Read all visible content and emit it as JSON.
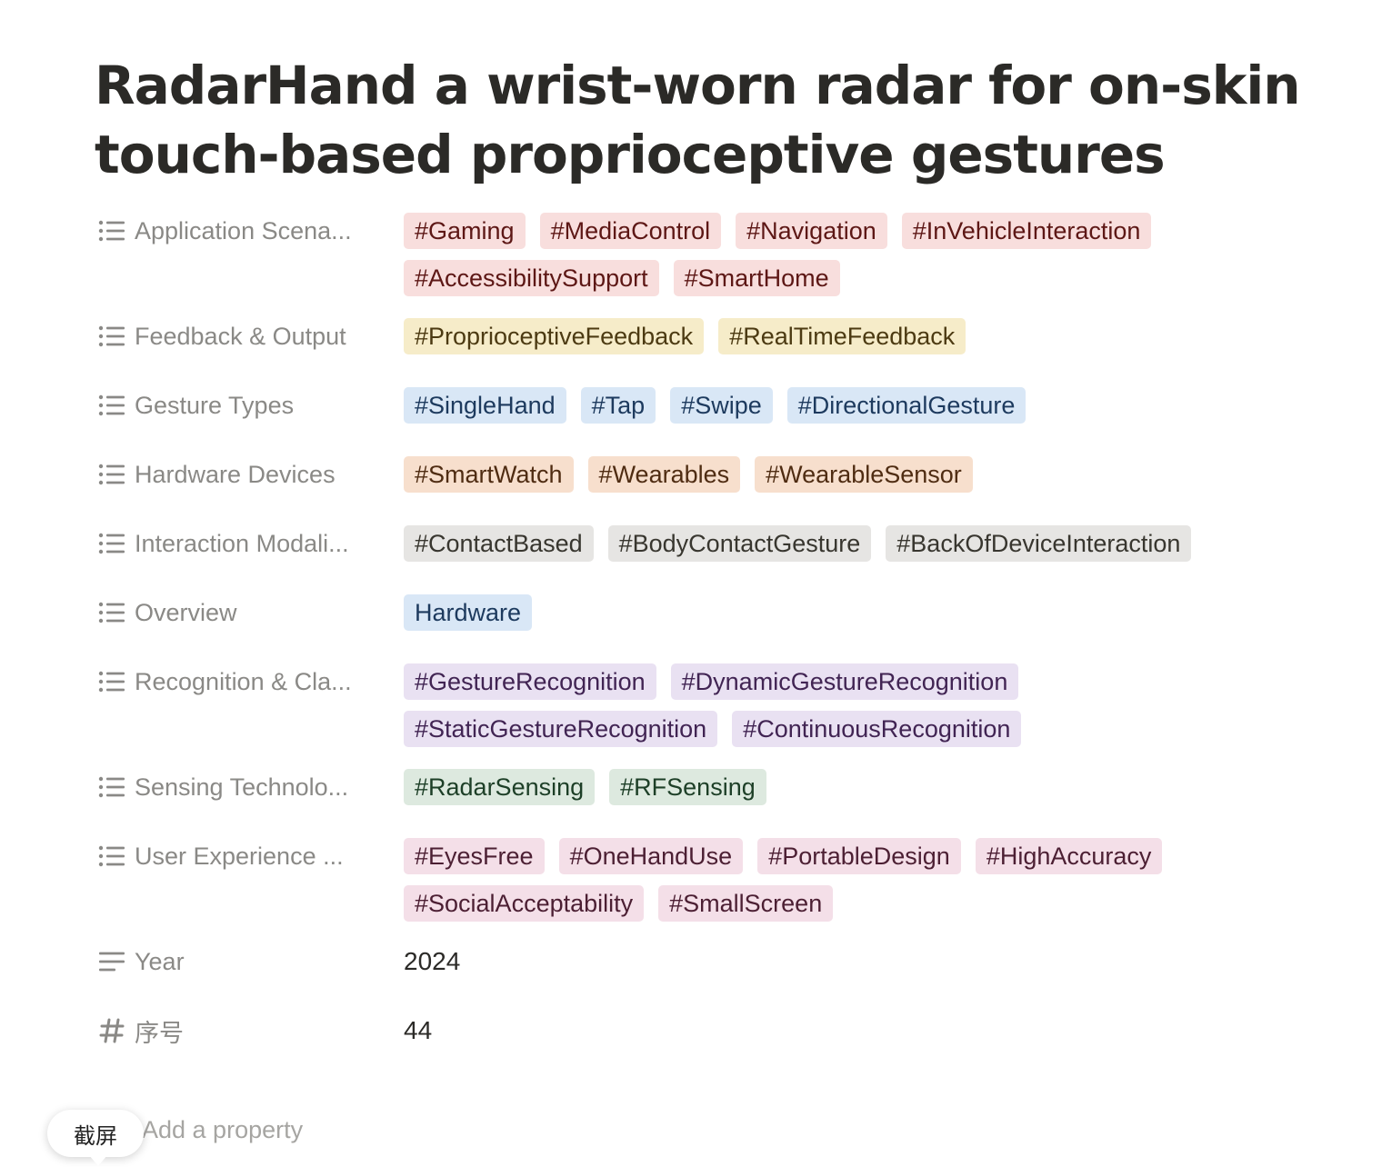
{
  "page": {
    "title": "RadarHand a wrist-worn radar for on-skin touch-based proprioceptive gestures"
  },
  "properties": [
    {
      "name": "Application Scena...",
      "icon": "multi-select-icon",
      "tags": [
        {
          "label": "#Gaming",
          "color": "red"
        },
        {
          "label": "#MediaControl",
          "color": "red"
        },
        {
          "label": "#Navigation",
          "color": "red"
        },
        {
          "label": "#InVehicleInteraction",
          "color": "red"
        },
        {
          "label": "#AccessibilitySupport",
          "color": "red"
        },
        {
          "label": "#SmartHome",
          "color": "red"
        }
      ]
    },
    {
      "name": "Feedback & Output",
      "icon": "multi-select-icon",
      "tags": [
        {
          "label": "#ProprioceptiveFeedback",
          "color": "yellow"
        },
        {
          "label": "#RealTimeFeedback",
          "color": "yellow"
        }
      ]
    },
    {
      "name": "Gesture Types",
      "icon": "multi-select-icon",
      "tags": [
        {
          "label": "#SingleHand",
          "color": "blue"
        },
        {
          "label": "#Tap",
          "color": "blue"
        },
        {
          "label": "#Swipe",
          "color": "blue"
        },
        {
          "label": "#DirectionalGesture",
          "color": "blue"
        }
      ]
    },
    {
      "name": "Hardware Devices",
      "icon": "multi-select-icon",
      "tags": [
        {
          "label": "#SmartWatch",
          "color": "orange"
        },
        {
          "label": "#Wearables",
          "color": "orange"
        },
        {
          "label": "#WearableSensor",
          "color": "orange"
        }
      ]
    },
    {
      "name": "Interaction Modali...",
      "icon": "multi-select-icon",
      "tags": [
        {
          "label": "#ContactBased",
          "color": "gray"
        },
        {
          "label": "#BodyContactGesture",
          "color": "gray"
        },
        {
          "label": "#BackOfDeviceInteraction",
          "color": "gray"
        }
      ]
    },
    {
      "name": "Overview",
      "icon": "multi-select-icon",
      "tags": [
        {
          "label": "Hardware",
          "color": "blue"
        }
      ]
    },
    {
      "name": "Recognition & Cla...",
      "icon": "multi-select-icon",
      "tags": [
        {
          "label": "#GestureRecognition",
          "color": "purple"
        },
        {
          "label": "#DynamicGestureRecognition",
          "color": "purple"
        },
        {
          "label": "#StaticGestureRecognition",
          "color": "purple"
        },
        {
          "label": "#ContinuousRecognition",
          "color": "purple"
        }
      ]
    },
    {
      "name": "Sensing Technolo...",
      "icon": "multi-select-icon",
      "tags": [
        {
          "label": "#RadarSensing",
          "color": "green"
        },
        {
          "label": "#RFSensing",
          "color": "green"
        }
      ]
    },
    {
      "name": "User Experience ...",
      "icon": "multi-select-icon",
      "tags": [
        {
          "label": "#EyesFree",
          "color": "pink"
        },
        {
          "label": "#OneHandUse",
          "color": "pink"
        },
        {
          "label": "#PortableDesign",
          "color": "pink"
        },
        {
          "label": "#HighAccuracy",
          "color": "pink"
        },
        {
          "label": "#SocialAcceptability",
          "color": "pink"
        },
        {
          "label": "#SmallScreen",
          "color": "pink"
        }
      ]
    },
    {
      "name": "Year",
      "icon": "text-icon",
      "text": "2024"
    },
    {
      "name": "序号",
      "icon": "number-icon",
      "text": "44"
    }
  ],
  "add_property": {
    "label": "Add a property"
  },
  "screenshot_bubble": {
    "label": "截屏"
  },
  "colors": {
    "red": "#f8dedd",
    "yellow": "#f6ecc9",
    "blue": "#d9e7f6",
    "orange": "#f7dfcd",
    "gray": "#e6e5e3",
    "purple": "#e9e1f2",
    "green": "#dde9df",
    "pink": "#f4dfe8"
  }
}
